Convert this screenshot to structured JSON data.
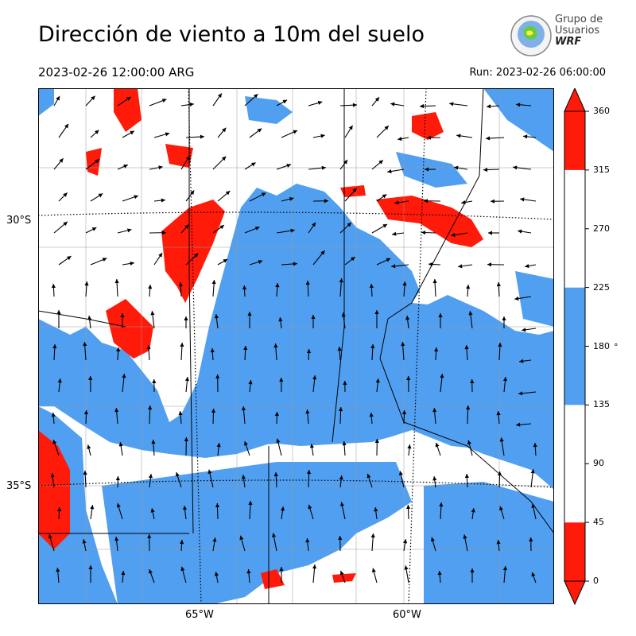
{
  "header": {
    "title": "Dirección de viento a 10m del suelo",
    "valid_time": "2023-02-26 12:00:00 ARG",
    "run_time": "Run: 2023-02-26 06:00:00"
  },
  "logo": {
    "line1": "Grupo de",
    "line2": "Usuarios",
    "line3": "WRF"
  },
  "map": {
    "lat_labels": [
      "30°S",
      "35°S"
    ],
    "lon_labels": [
      "65°W",
      "60°W"
    ],
    "colors": {
      "north_band": "#ff1a0a",
      "south_band": "#519ff0",
      "other": "#ffffff"
    }
  },
  "colorbar": {
    "ticks": [
      "0",
      "45",
      "90",
      "135",
      "180",
      "225",
      "270",
      "315",
      "360"
    ],
    "unit": "°",
    "segments": [
      {
        "from": 0,
        "to": 45,
        "color": "#ff1a0a"
      },
      {
        "from": 45,
        "to": 135,
        "color": "#ffffff"
      },
      {
        "from": 135,
        "to": 225,
        "color": "#519ff0"
      },
      {
        "from": 225,
        "to": 315,
        "color": "#ffffff"
      },
      {
        "from": 315,
        "to": 360,
        "color": "#ff1a0a"
      }
    ],
    "extend_low_color": "#ff1a0a",
    "extend_high_color": "#ff1a0a"
  }
}
